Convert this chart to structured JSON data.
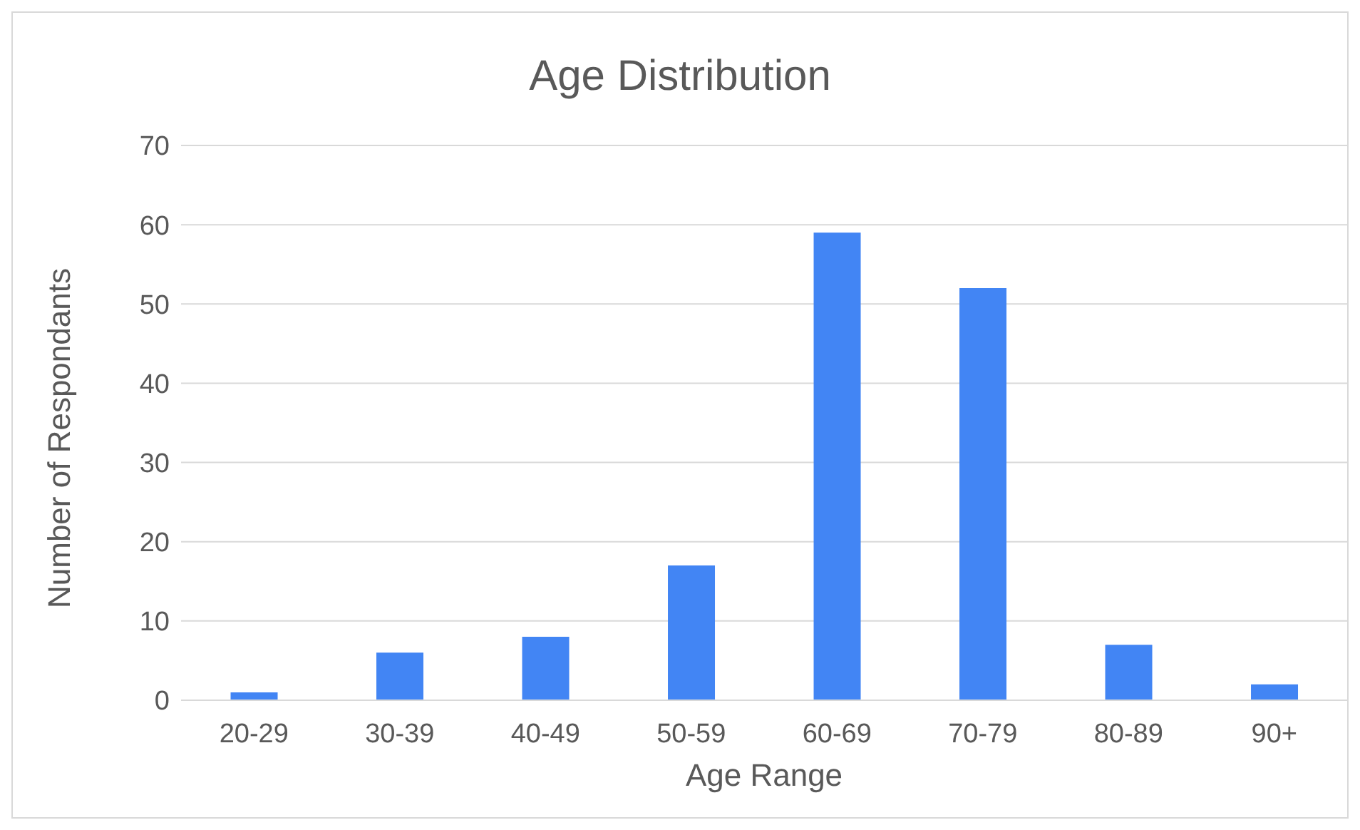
{
  "chart_data": {
    "type": "bar",
    "title": "Age Distribution",
    "xlabel": "Age Range",
    "ylabel": "Number of Respondants",
    "categories": [
      "20-29",
      "30-39",
      "40-49",
      "50-59",
      "60-69",
      "70-79",
      "80-89",
      "90+"
    ],
    "values": [
      1,
      6,
      8,
      17,
      59,
      52,
      7,
      2
    ],
    "color": "#4285f4",
    "ylim": [
      0,
      70
    ],
    "yticks": [
      0,
      10,
      20,
      30,
      40,
      50,
      60,
      70
    ],
    "grid": "y",
    "legend": false
  }
}
